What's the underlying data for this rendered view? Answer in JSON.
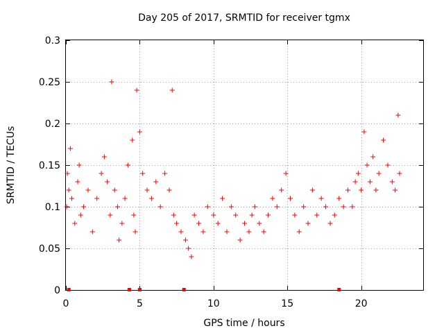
{
  "chart_data": {
    "type": "scatter",
    "title": "Day 205 of 2017, SRMTID for receiver tgmx",
    "xlabel": "GPS time / hours",
    "ylabel": "SRMTID / TECUs",
    "xlim": [
      0,
      24.2
    ],
    "ylim": [
      0,
      0.3
    ],
    "x_ticks": [
      0,
      5,
      10,
      15,
      20
    ],
    "x_tick_labels": [
      "0",
      "5",
      "10",
      "15",
      "20"
    ],
    "y_ticks": [
      0,
      0.05,
      0.1,
      0.15,
      0.2,
      0.25,
      0.3
    ],
    "y_tick_labels": [
      "0",
      "0.05",
      "0.1",
      "0.15",
      "0.2",
      "0.25",
      "0.3"
    ],
    "grid": true,
    "marker": "+",
    "point_color": "#ff0000",
    "series": [
      {
        "name": "SRMTID",
        "x": [
          0.05,
          0.1,
          0.2,
          0.3,
          0.4,
          0.6,
          0.8,
          0.9,
          1.0,
          1.2,
          1.5,
          1.8,
          2.1,
          2.4,
          2.6,
          2.8,
          3.0,
          3.1,
          3.3,
          3.5,
          3.6,
          3.8,
          4.0,
          4.2,
          4.5,
          4.6,
          4.7,
          4.8,
          5.0,
          5.2,
          5.5,
          5.8,
          6.1,
          6.4,
          6.7,
          7.0,
          7.2,
          7.3,
          7.5,
          7.8,
          8.1,
          8.3,
          8.5,
          8.7,
          9.0,
          9.3,
          9.6,
          10.0,
          10.3,
          10.6,
          10.9,
          11.2,
          11.5,
          11.8,
          12.1,
          12.4,
          12.6,
          12.8,
          13.1,
          13.4,
          13.7,
          14.0,
          14.3,
          14.6,
          14.9,
          15.2,
          15.5,
          15.8,
          16.1,
          16.4,
          16.7,
          17.0,
          17.3,
          17.6,
          17.9,
          18.2,
          18.5,
          18.8,
          19.1,
          19.4,
          19.6,
          19.8,
          20.0,
          20.2,
          20.4,
          20.6,
          20.8,
          21.0,
          21.2,
          21.5,
          21.8,
          22.1,
          22.3,
          22.5,
          22.6
        ],
        "y": [
          0.1,
          0.14,
          0.12,
          0.17,
          0.11,
          0.08,
          0.13,
          0.15,
          0.09,
          0.1,
          0.12,
          0.07,
          0.11,
          0.14,
          0.16,
          0.13,
          0.09,
          0.25,
          0.12,
          0.1,
          0.06,
          0.08,
          0.11,
          0.15,
          0.18,
          0.09,
          0.07,
          0.24,
          0.19,
          0.14,
          0.12,
          0.11,
          0.13,
          0.1,
          0.14,
          0.12,
          0.24,
          0.09,
          0.08,
          0.07,
          0.06,
          0.05,
          0.04,
          0.09,
          0.08,
          0.07,
          0.1,
          0.09,
          0.08,
          0.11,
          0.07,
          0.1,
          0.09,
          0.06,
          0.08,
          0.07,
          0.09,
          0.1,
          0.08,
          0.07,
          0.09,
          0.11,
          0.1,
          0.12,
          0.14,
          0.11,
          0.09,
          0.07,
          0.1,
          0.08,
          0.12,
          0.09,
          0.11,
          0.1,
          0.08,
          0.09,
          0.11,
          0.1,
          0.12,
          0.1,
          0.13,
          0.14,
          0.12,
          0.19,
          0.15,
          0.13,
          0.16,
          0.12,
          0.14,
          0.18,
          0.15,
          0.13,
          0.12,
          0.21,
          0.14
        ]
      }
    ],
    "zero_markers_x": [
      0.2,
      4.3,
      5.0,
      8.0,
      18.5
    ]
  }
}
